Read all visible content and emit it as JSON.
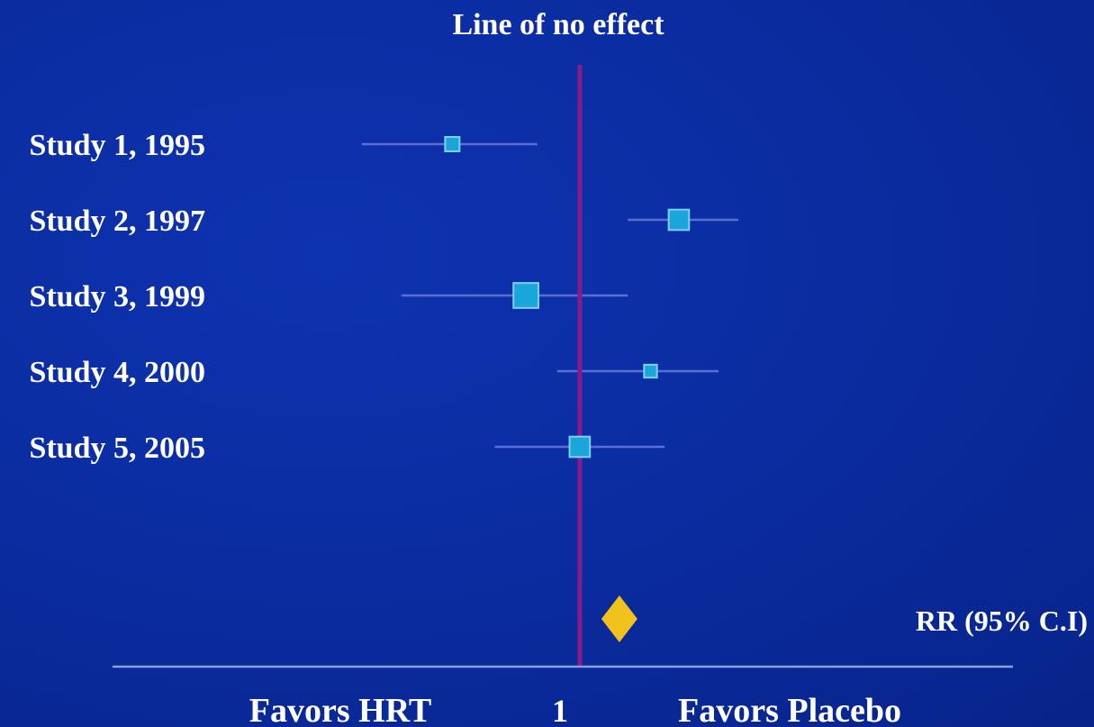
{
  "chart_data": {
    "type": "forest",
    "title": "Line of no effect",
    "reference_value": 1,
    "x_tick_label": "1",
    "left_label": "Favors HRT",
    "right_label": "Favors Placebo",
    "summary_label": "RR (95% C.I)",
    "studies": [
      {
        "label": "Study 1, 1995",
        "estimate": 0.55,
        "lower": 0.23,
        "upper": 0.85,
        "weight": 1
      },
      {
        "label": "Study 2, 1997",
        "estimate": 1.35,
        "lower": 1.17,
        "upper": 1.56,
        "weight": 2
      },
      {
        "label": "Study 3, 1999",
        "estimate": 0.81,
        "lower": 0.37,
        "upper": 1.17,
        "weight": 3
      },
      {
        "label": "Study 4, 2000",
        "estimate": 1.25,
        "lower": 0.92,
        "upper": 1.49,
        "weight": 0.8
      },
      {
        "label": "Study 5, 2005",
        "estimate": 1.0,
        "lower": 0.7,
        "upper": 1.3,
        "weight": 2
      }
    ],
    "summary": {
      "estimate": 1.14
    },
    "xlim": [
      -0.65,
      2.53
    ],
    "colors": {
      "background": "#0a2a9c",
      "ci_line": "#5c6fd0",
      "marker_fill": "#1aa6d8",
      "marker_stroke": "#7fd0ff",
      "no_effect_line": "#8a1a8a",
      "summary_diamond": "#f2c21c",
      "axis": "#8aa0d8",
      "text": "#ffffff"
    }
  }
}
